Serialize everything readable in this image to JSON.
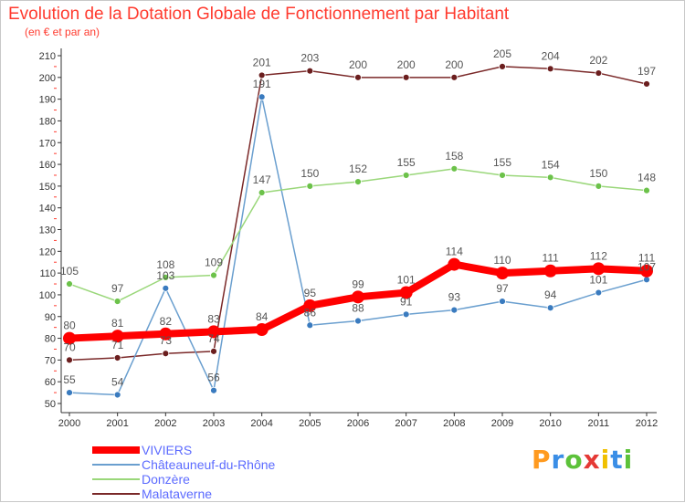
{
  "title": "Evolution de la Dotation Globale de Fonctionnement par Habitant",
  "subtitle": "(en € et par an)",
  "brand": {
    "letters": [
      "P",
      "r",
      "o",
      "x",
      "i",
      "t",
      "i"
    ],
    "colors": [
      "#ff9a1f",
      "#3a8ee6",
      "#5cc23a",
      "#e53935",
      "#f0c000",
      "#3a8ee6",
      "#5cc23a"
    ]
  },
  "chart_data": {
    "type": "line",
    "title": "Evolution de la Dotation Globale de Fonctionnement par Habitant",
    "subtitle": "(en € et par an)",
    "xlabel": "",
    "ylabel": "",
    "ylim": [
      50,
      210
    ],
    "y_ticks": [
      "50",
      "60",
      "70",
      "80",
      "90",
      "100",
      "110",
      "120",
      "130",
      "140",
      "150",
      "160",
      "170",
      "180",
      "190",
      "200",
      "210"
    ],
    "categories": [
      "2000",
      "2001",
      "2002",
      "2003",
      "2004",
      "2005",
      "2006",
      "2007",
      "2008",
      "2009",
      "2010",
      "2011",
      "2012"
    ],
    "grid": false,
    "legend": "bottom-left",
    "series": [
      {
        "name": "VIVIERS",
        "color": "#ff0000",
        "marker": "#ff0000",
        "width": 8,
        "radius": 7,
        "values": [
          80,
          81,
          82,
          83,
          84,
          95,
          99,
          101,
          114,
          110,
          111,
          112,
          111
        ],
        "labels": [
          "80",
          "81",
          "82",
          "83",
          "84",
          "95",
          "99",
          "101",
          "114",
          "110",
          "111",
          "112",
          "111"
        ]
      },
      {
        "name": "Châteauneuf-du-Rhône",
        "color": "#6a9fcf",
        "marker": "#3a7bbf",
        "width": 1.5,
        "radius": 3.5,
        "values": [
          55,
          54,
          103,
          56,
          191,
          86,
          88,
          91,
          93,
          97,
          94,
          101,
          107
        ],
        "labels": [
          "55",
          "54",
          "103",
          "56",
          "191",
          "86",
          "88",
          "91",
          "93",
          "97",
          "94",
          "101",
          "107"
        ]
      },
      {
        "name": "Donzère",
        "color": "#9ad77a",
        "marker": "#6cc24a",
        "width": 1.5,
        "radius": 3.5,
        "values": [
          105,
          97,
          108,
          109,
          147,
          150,
          152,
          155,
          158,
          155,
          154,
          150,
          148
        ],
        "labels": [
          "105",
          "97",
          "108",
          "109",
          "147",
          "150",
          "152",
          "155",
          "158",
          "155",
          "154",
          "150",
          "148"
        ]
      },
      {
        "name": "Malataverne",
        "color": "#7a2828",
        "marker": "#6b1e1e",
        "width": 1.5,
        "radius": 3.5,
        "values": [
          70,
          71,
          73,
          74,
          201,
          203,
          200,
          200,
          200,
          205,
          204,
          202,
          197
        ],
        "labels": [
          "70",
          "71",
          "73",
          "74",
          "201",
          "203",
          "200",
          "200",
          "200",
          "205",
          "204",
          "202",
          "197"
        ]
      }
    ]
  }
}
